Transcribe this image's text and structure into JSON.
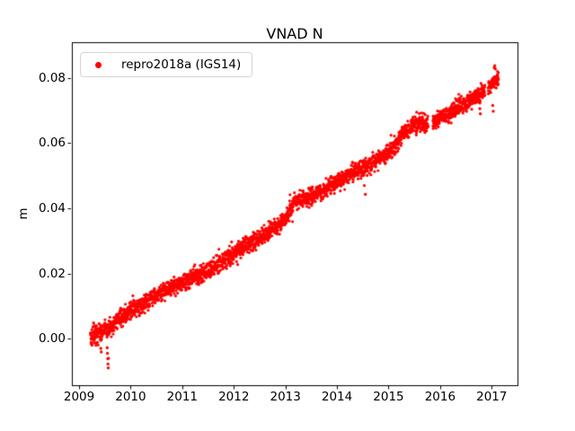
{
  "chart_data": {
    "type": "scatter",
    "title": "VNAD N",
    "xlabel": "",
    "ylabel": "m",
    "legend": [
      "repro2018a (IGS14)"
    ],
    "legend_position": "upper left",
    "grid": false,
    "color": "#ff0000",
    "marker_radius_px": 1.6,
    "xlim": [
      2008.86,
      2017.5
    ],
    "ylim": [
      -0.0143,
      0.091
    ],
    "x_ticks": {
      "values": [
        2009,
        2010,
        2011,
        2012,
        2013,
        2014,
        2015,
        2016,
        2017
      ],
      "labels": [
        "2009",
        "2010",
        "2011",
        "2012",
        "2013",
        "2014",
        "2015",
        "2016",
        "2017"
      ]
    },
    "y_ticks": {
      "values": [
        0.0,
        0.02,
        0.04,
        0.06,
        0.08
      ],
      "labels": [
        "0.00",
        "0.02",
        "0.04",
        "0.06",
        "0.08"
      ]
    },
    "t_start": 2009.22,
    "t_end": 2017.13,
    "n_points": 2850,
    "noise_std": 0.0013,
    "seed": 42,
    "trend": [
      [
        2009.22,
        0.0005
      ],
      [
        2009.4,
        0.0015
      ],
      [
        2009.6,
        0.0035
      ],
      [
        2009.91,
        0.0078
      ],
      [
        2010.2,
        0.0103
      ],
      [
        2010.43,
        0.0128
      ],
      [
        2010.7,
        0.0148
      ],
      [
        2010.95,
        0.0168
      ],
      [
        2011.2,
        0.0187
      ],
      [
        2011.47,
        0.0205
      ],
      [
        2011.75,
        0.0233
      ],
      [
        2011.99,
        0.0259
      ],
      [
        2012.25,
        0.0288
      ],
      [
        2012.52,
        0.0313
      ],
      [
        2012.8,
        0.034
      ],
      [
        2013.05,
        0.038
      ],
      [
        2013.18,
        0.042
      ],
      [
        2013.4,
        0.0432
      ],
      [
        2013.6,
        0.0442
      ],
      [
        2013.8,
        0.0463
      ],
      [
        2014.09,
        0.0488
      ],
      [
        2014.35,
        0.0512
      ],
      [
        2014.61,
        0.0533
      ],
      [
        2014.9,
        0.0559
      ],
      [
        2015.13,
        0.0588
      ],
      [
        2015.3,
        0.0635
      ],
      [
        2015.5,
        0.0658
      ],
      [
        2015.75,
        0.0662
      ],
      [
        2015.95,
        0.067
      ],
      [
        2016.18,
        0.0692
      ],
      [
        2016.45,
        0.0718
      ],
      [
        2016.7,
        0.0743
      ],
      [
        2016.9,
        0.0766
      ],
      [
        2017.0,
        0.078
      ],
      [
        2017.13,
        0.08
      ]
    ],
    "gaps": [
      [
        2015.77,
        2015.86
      ],
      [
        2016.87,
        2016.93
      ]
    ],
    "outliers": [
      [
        2009.42,
        -0.003
      ],
      [
        2009.43,
        -0.0041
      ],
      [
        2009.545,
        -0.0028
      ],
      [
        2009.55,
        -0.0045
      ],
      [
        2009.555,
        -0.0062
      ],
      [
        2009.56,
        -0.0078
      ],
      [
        2009.565,
        -0.009
      ],
      [
        2009.57,
        -0.006
      ],
      [
        2009.25,
        -0.002
      ],
      [
        2009.28,
        0.0048
      ],
      [
        2009.3,
        0.004
      ],
      [
        2011.55,
        0.0192
      ],
      [
        2014.52,
        0.0502
      ],
      [
        2014.53,
        0.047
      ],
      [
        2014.55,
        0.0443
      ],
      [
        2016.77,
        0.0706
      ],
      [
        2016.78,
        0.069
      ],
      [
        2017.02,
        0.0716
      ],
      [
        2017.03,
        0.0698
      ],
      [
        2017.05,
        0.0832
      ],
      [
        2017.06,
        0.0838
      ],
      [
        2017.07,
        0.0828
      ],
      [
        2017.13,
        0.0795
      ]
    ]
  }
}
